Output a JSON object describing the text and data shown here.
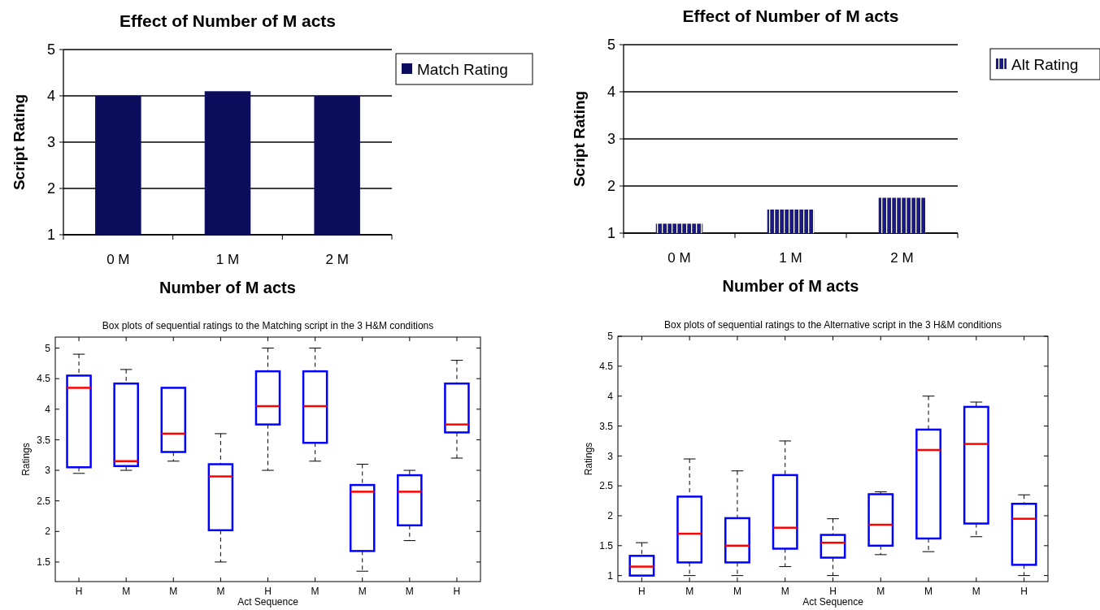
{
  "chart_data": [
    {
      "type": "bar",
      "title": "Effect of Number of M acts",
      "xlabel": "Number of M acts",
      "ylabel": "Script Rating",
      "categories": [
        "0 M",
        "1 M",
        "2 M"
      ],
      "series": [
        {
          "name": "Match Rating",
          "color": "#0d0d5e",
          "values": [
            4,
            4.1,
            4
          ]
        }
      ],
      "ylim": [
        1,
        5
      ],
      "yticks": [
        1,
        2,
        3,
        4,
        5
      ],
      "grid": "y",
      "legend": "top right"
    },
    {
      "type": "bar",
      "title": "Effect of Number of M acts",
      "xlabel": "Number of M acts",
      "ylabel": "Script Rating",
      "categories": [
        "0 M",
        "1 M",
        "2 M"
      ],
      "series": [
        {
          "name": "Alt Rating",
          "color": "#1a1a80",
          "values": [
            1.2,
            1.5,
            1.75
          ]
        }
      ],
      "ylim": [
        1,
        5
      ],
      "yticks": [
        1,
        2,
        3,
        4,
        5
      ],
      "grid": "y",
      "legend": "top right"
    },
    {
      "type": "box",
      "title": "Box plots of sequential ratings to the Matching script in the 3 H&M conditions",
      "xlabel": "Act Sequence",
      "ylabel": "Ratings",
      "categories": [
        "H",
        "M",
        "M",
        "M",
        "H",
        "M",
        "M",
        "M",
        "H"
      ],
      "series": [
        {
          "color": "#0000ff",
          "boxes": [
            {
              "low": 2.95,
              "q1": 3.05,
              "median": 4.35,
              "q3": 4.55,
              "high": 4.9
            },
            {
              "low": 3.0,
              "q1": 3.07,
              "median": 3.15,
              "q3": 4.42,
              "high": 4.65
            },
            {
              "low": 3.15,
              "q1": 3.3,
              "median": 3.6,
              "q3": 4.35,
              "high": 4.35
            },
            {
              "low": 1.5,
              "q1": 2.02,
              "median": 2.9,
              "q3": 3.1,
              "high": 3.6
            },
            {
              "low": 3.0,
              "q1": 3.75,
              "median": 4.05,
              "q3": 4.62,
              "high": 5.0
            },
            {
              "low": 3.15,
              "q1": 3.45,
              "median": 4.05,
              "q3": 4.62,
              "high": 5.0
            },
            {
              "low": 1.35,
              "q1": 1.68,
              "median": 2.65,
              "q3": 2.76,
              "high": 3.1
            },
            {
              "low": 1.85,
              "q1": 2.1,
              "median": 2.65,
              "q3": 2.92,
              "high": 3.0
            },
            {
              "low": 3.2,
              "q1": 3.62,
              "median": 3.75,
              "q3": 4.42,
              "high": 4.8
            }
          ]
        }
      ],
      "ylim": [
        1.18,
        5.18
      ],
      "yticks": [
        1.5,
        2,
        2.5,
        3,
        3.5,
        4,
        4.5,
        5
      ],
      "grid": false
    },
    {
      "type": "box",
      "title": "Box plots of sequential ratings to the Alternative script in the 3 H&M conditions",
      "xlabel": "Act Sequence",
      "ylabel": "Ratings",
      "categories": [
        "H",
        "M",
        "M",
        "M",
        "H",
        "M",
        "M",
        "M",
        "H"
      ],
      "series": [
        {
          "color": "#0000ff",
          "boxes": [
            {
              "low": 1.0,
              "q1": 1.0,
              "median": 1.15,
              "q3": 1.33,
              "high": 1.55
            },
            {
              "low": 1.0,
              "q1": 1.22,
              "median": 1.7,
              "q3": 2.32,
              "high": 2.95
            },
            {
              "low": 1.0,
              "q1": 1.22,
              "median": 1.5,
              "q3": 1.96,
              "high": 2.75
            },
            {
              "low": 1.15,
              "q1": 1.45,
              "median": 1.8,
              "q3": 2.68,
              "high": 3.25
            },
            {
              "low": 1.0,
              "q1": 1.3,
              "median": 1.55,
              "q3": 1.68,
              "high": 1.95
            },
            {
              "low": 1.35,
              "q1": 1.5,
              "median": 1.85,
              "q3": 2.36,
              "high": 2.4
            },
            {
              "low": 1.4,
              "q1": 1.62,
              "median": 3.1,
              "q3": 3.44,
              "high": 4.0
            },
            {
              "low": 1.65,
              "q1": 1.87,
              "median": 3.2,
              "q3": 3.82,
              "high": 3.9
            },
            {
              "low": 1.0,
              "q1": 1.18,
              "median": 1.95,
              "q3": 2.2,
              "high": 2.35
            }
          ]
        }
      ],
      "ylim": [
        0.9,
        5
      ],
      "yticks": [
        1,
        1.5,
        2,
        2.5,
        3,
        3.5,
        4,
        4.5,
        5
      ],
      "grid": false
    }
  ]
}
